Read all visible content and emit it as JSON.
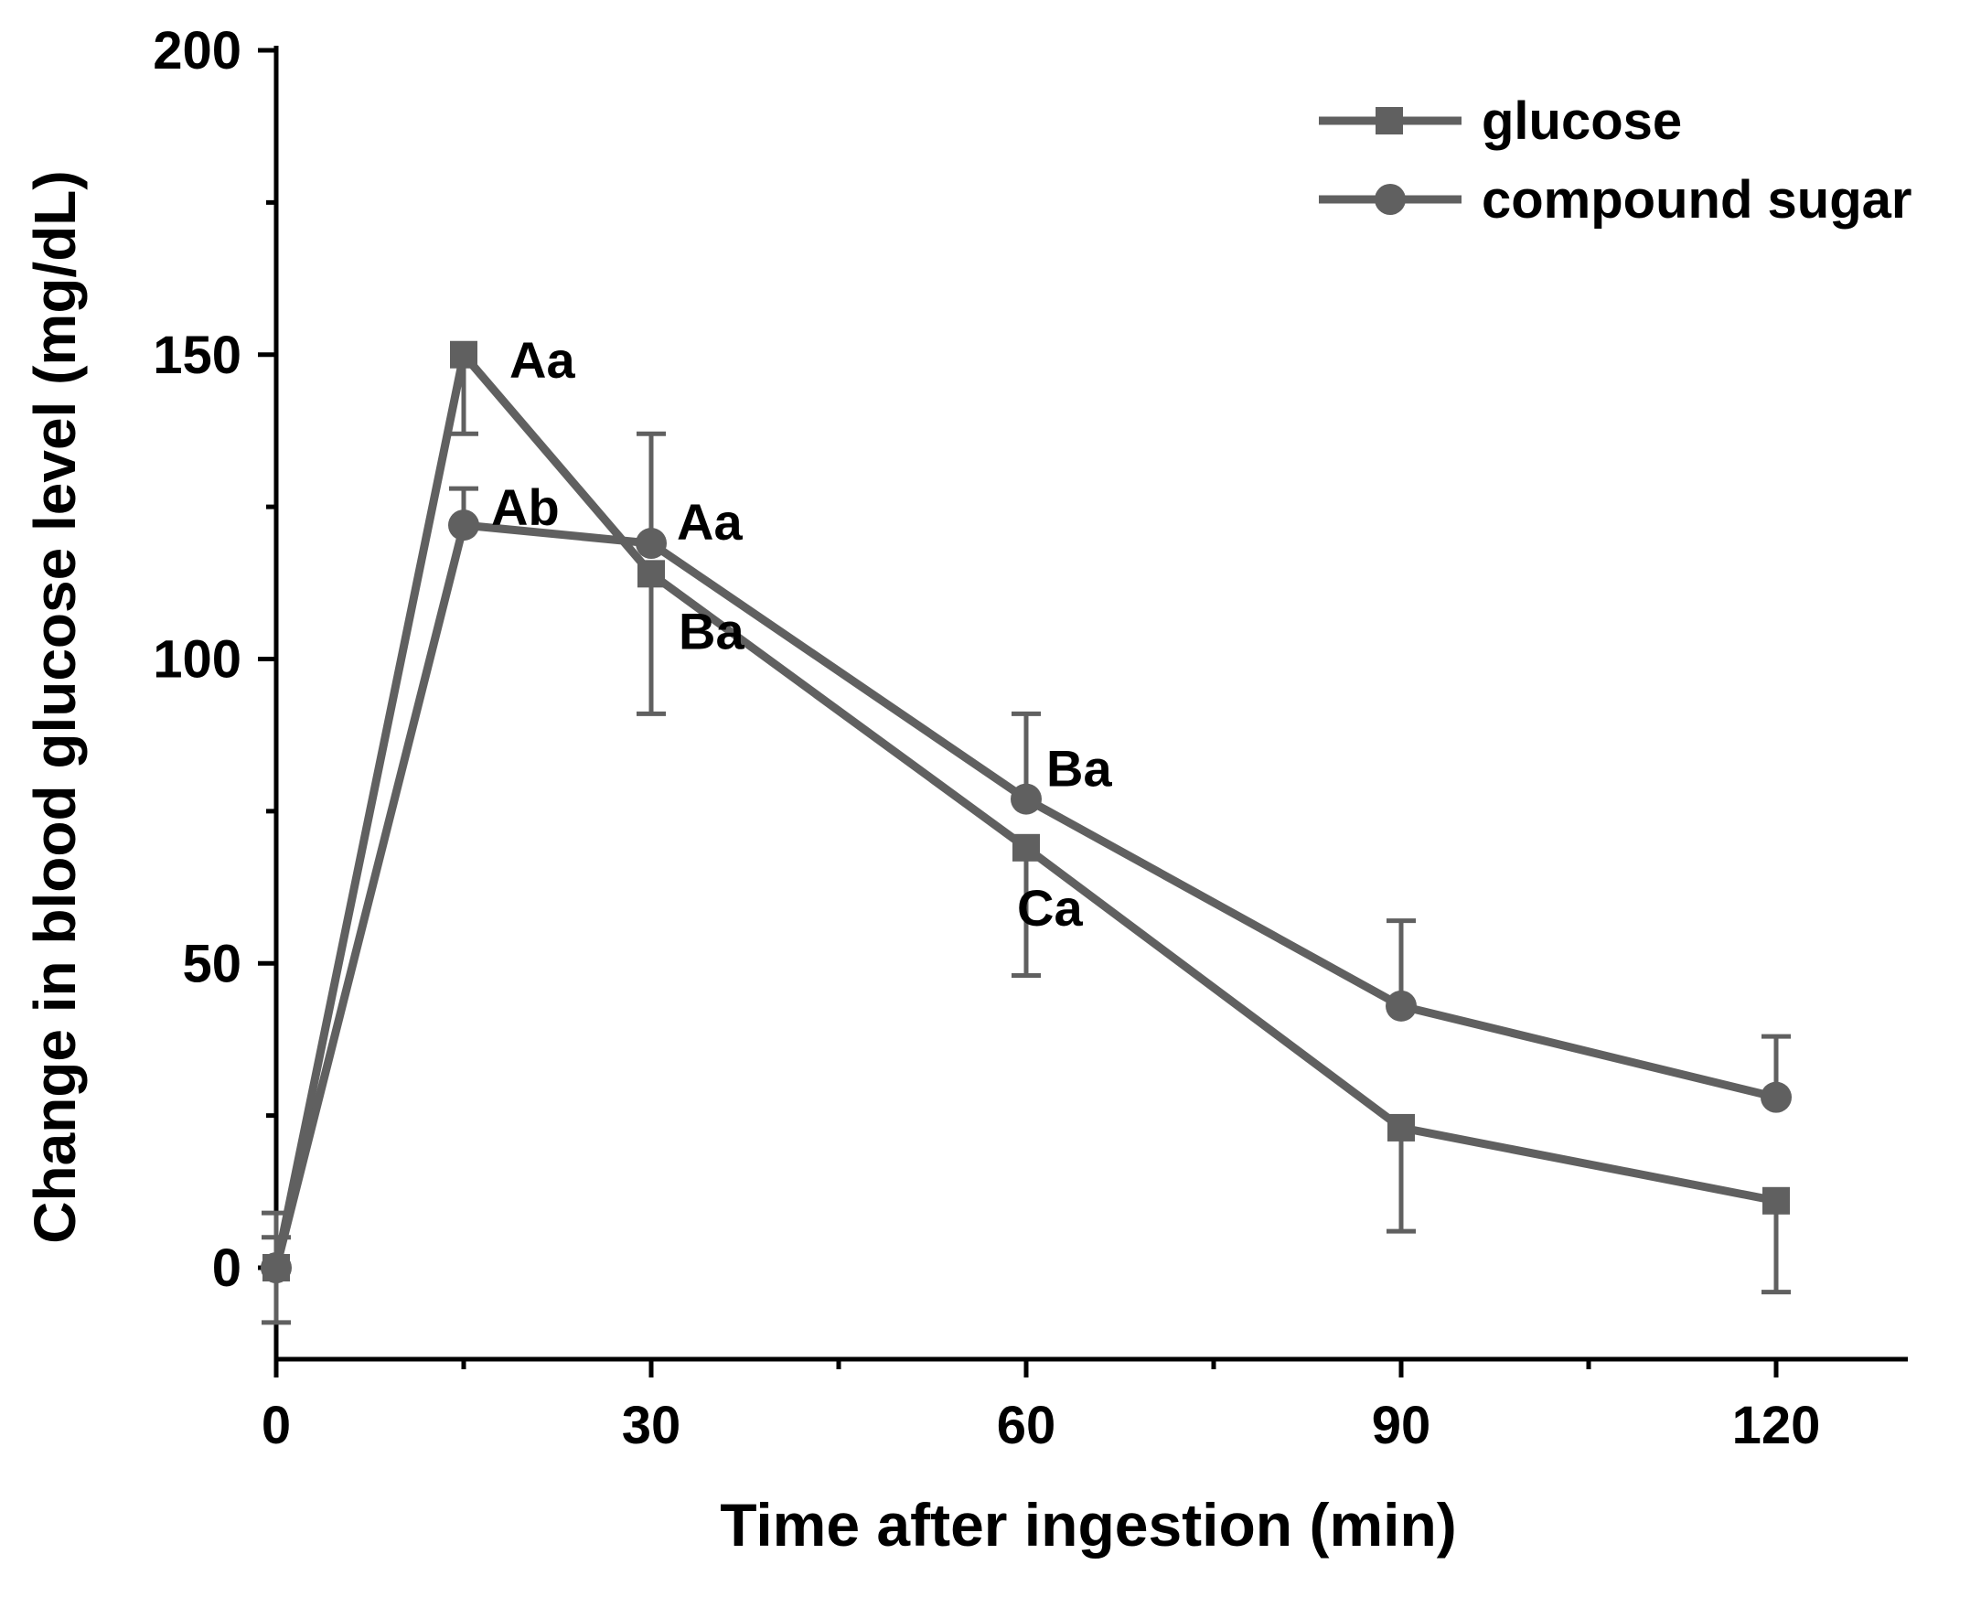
{
  "chart_data": {
    "type": "line",
    "xlabel": "Time after ingestion (min)",
    "ylabel": "Change in blood glucose level (mg/dL)",
    "xlim": [
      0,
      130
    ],
    "ylim": [
      -15,
      200
    ],
    "xticks": [
      0,
      30,
      60,
      90,
      120
    ],
    "yticks": [
      0,
      50,
      100,
      150,
      200
    ],
    "x": [
      0,
      15,
      30,
      60,
      90,
      120
    ],
    "line_color": "#606060",
    "legend_position": "top-right",
    "series": [
      {
        "name": "glucose",
        "marker": "square",
        "values": [
          0,
          150,
          114,
          69,
          23,
          11
        ],
        "errors": [
          9,
          13,
          23,
          21,
          17,
          15
        ],
        "error_direction": [
          "both",
          "down",
          "down",
          "down",
          "down",
          "down"
        ],
        "labels": [
          "",
          "Aa",
          "Ba",
          "Ca",
          "",
          ""
        ]
      },
      {
        "name": "compound sugar",
        "marker": "circle",
        "values": [
          0,
          122,
          119,
          77,
          43,
          28
        ],
        "errors": [
          5,
          6,
          18,
          14,
          14,
          10
        ],
        "error_direction": [
          "up",
          "up",
          "up",
          "up",
          "up",
          "up"
        ],
        "labels": [
          "",
          "Ab",
          "Aa",
          "Ba",
          "",
          ""
        ]
      }
    ]
  }
}
